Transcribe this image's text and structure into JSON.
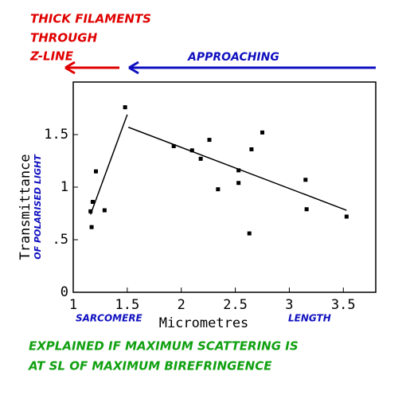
{
  "chart_data": {
    "type": "scatter",
    "title_lines": [
      "THICK FILAMENTS",
      "THROUGH",
      "Z-LINE"
    ],
    "arrow_label": "APPROACHING",
    "x_label": "Micrometres",
    "x_label_left": "SARCOMERE",
    "x_label_right": "LENGTH",
    "y_label": "Transmittance",
    "y_label_sub": "OF POLARISED LIGHT",
    "caption_lines": [
      "EXPLAINED IF MAXIMUM SCATTERING IS",
      "AT SL OF MAXIMUM BIREFRINGENCE"
    ],
    "color": "#000000",
    "x": [
      1.17,
      1.18,
      1.21,
      1.16,
      1.29,
      1.48,
      1.93,
      2.1,
      2.18,
      2.26,
      2.34,
      2.53,
      2.53,
      2.65,
      2.63,
      2.75,
      3.15,
      3.16,
      3.53
    ],
    "values": [
      0.62,
      0.86,
      1.15,
      0.77,
      0.78,
      1.76,
      1.39,
      1.35,
      1.27,
      1.45,
      0.98,
      1.16,
      1.04,
      1.36,
      0.56,
      1.52,
      1.07,
      0.79,
      0.72
    ],
    "fit_lines": [
      {
        "x": [
          1.16,
          1.5
        ],
        "values": [
          0.74,
          1.69
        ]
      },
      {
        "x": [
          1.51,
          3.53
        ],
        "values": [
          1.57,
          0.78
        ]
      }
    ],
    "xlim": [
      1,
      3.8
    ],
    "ylim": [
      0,
      2
    ],
    "xticks": [
      1,
      1.5,
      2,
      2.5,
      3,
      3.5
    ],
    "yticks": [
      0,
      {
        "value": 0.5,
        "label": ".5"
      },
      1,
      1.5
    ]
  }
}
